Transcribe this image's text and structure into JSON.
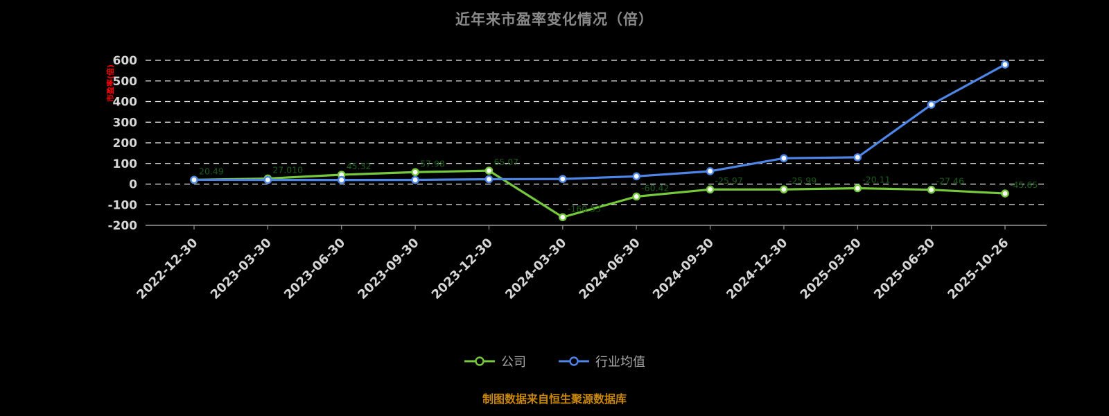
{
  "title": "近年来市盈率变化情况（倍）",
  "y_axis_title": "市盈率(倍)",
  "y_axis_title_color": "#ff0000",
  "source_note": "制图数据来自恒生聚源数据库",
  "legend": [
    {
      "label": "公司",
      "color": "#76c83c"
    },
    {
      "label": "行业均值",
      "color": "#4e86e8"
    }
  ],
  "colors": {
    "background": "#000000",
    "title_text": "#8a8a8a",
    "axis_text": "#d6d6d6",
    "gridline": "#f2f2f2",
    "axis_line": "#9a9a9a",
    "note_text": "#c8860b"
  },
  "chart_data": {
    "type": "line",
    "title": "近年来市盈率变化情况（倍）",
    "xlabel": "",
    "ylabel": "市盈率(倍)",
    "ylim": [
      -200,
      600
    ],
    "ytick_step": 100,
    "grid": "dashed-horizontal",
    "legend_position": "bottom",
    "categories": [
      "2022-12-30",
      "2023-03-30",
      "2023-06-30",
      "2023-09-30",
      "2023-12-30",
      "2024-03-30",
      "2024-06-30",
      "2024-09-30",
      "2024-12-30",
      "2025-03-30",
      "2025-06-30",
      "2025-10-26"
    ],
    "series": [
      {
        "name": "公司",
        "color": "#76c83c",
        "label_color": "#1a5c1a",
        "values": [
          20.49,
          27.01,
          45.32,
          57.98,
          65.07,
          -160.53,
          -60.42,
          -25.97,
          -25.99,
          -20.11,
          -27.46,
          -45.65
        ],
        "labels": [
          "20.49",
          "27.010",
          "45.32",
          "57.98",
          "65.07",
          "-160.53",
          "-60.42",
          "-25.97",
          "-25.99",
          "-20.11",
          "-27.46",
          "-45.65"
        ]
      },
      {
        "name": "行业均值",
        "color": "#4e86e8",
        "values": [
          20.3,
          20.1,
          19.8,
          20.2,
          23.5,
          24.8,
          37.6,
          62.4,
          125.3,
          129.8,
          385.2,
          579.6
        ]
      }
    ]
  }
}
